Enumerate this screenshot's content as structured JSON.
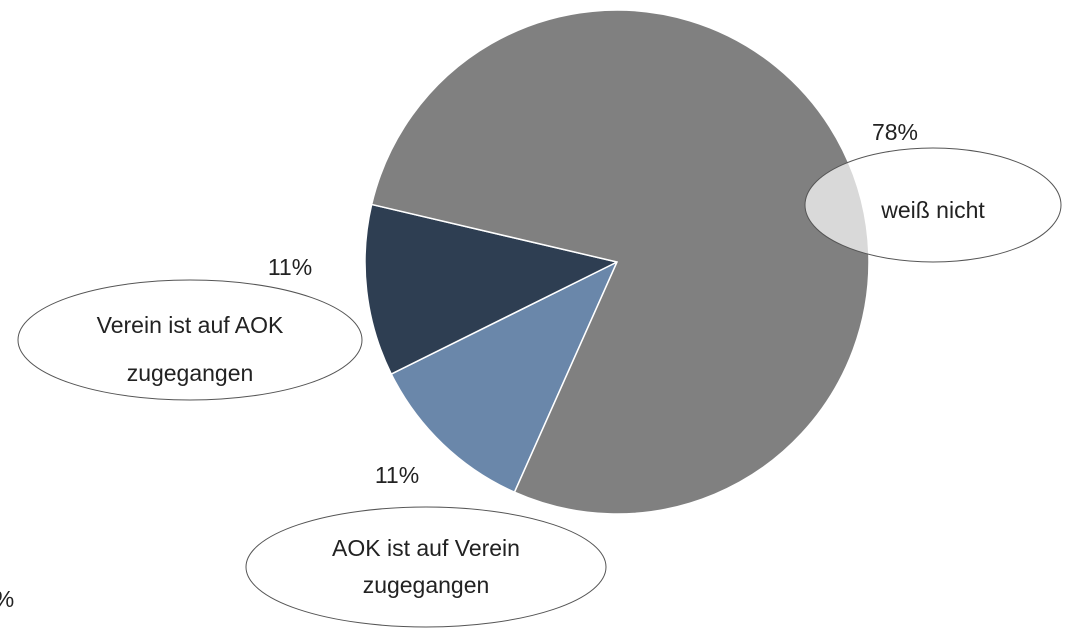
{
  "chart_data": {
    "type": "pie",
    "categories": [
      [
        "AOK ist auf Verein",
        "zugegangen"
      ],
      [
        "Verein ist auf AOK",
        "zugegangen"
      ],
      [
        "weiß nicht"
      ]
    ],
    "values": [
      11,
      11,
      78
    ],
    "value_labels": [
      "11%",
      "11%",
      "78%"
    ],
    "colors": [
      "#6a87aa",
      "#2e3e52",
      "#808080"
    ],
    "annotations": [
      "%"
    ]
  }
}
